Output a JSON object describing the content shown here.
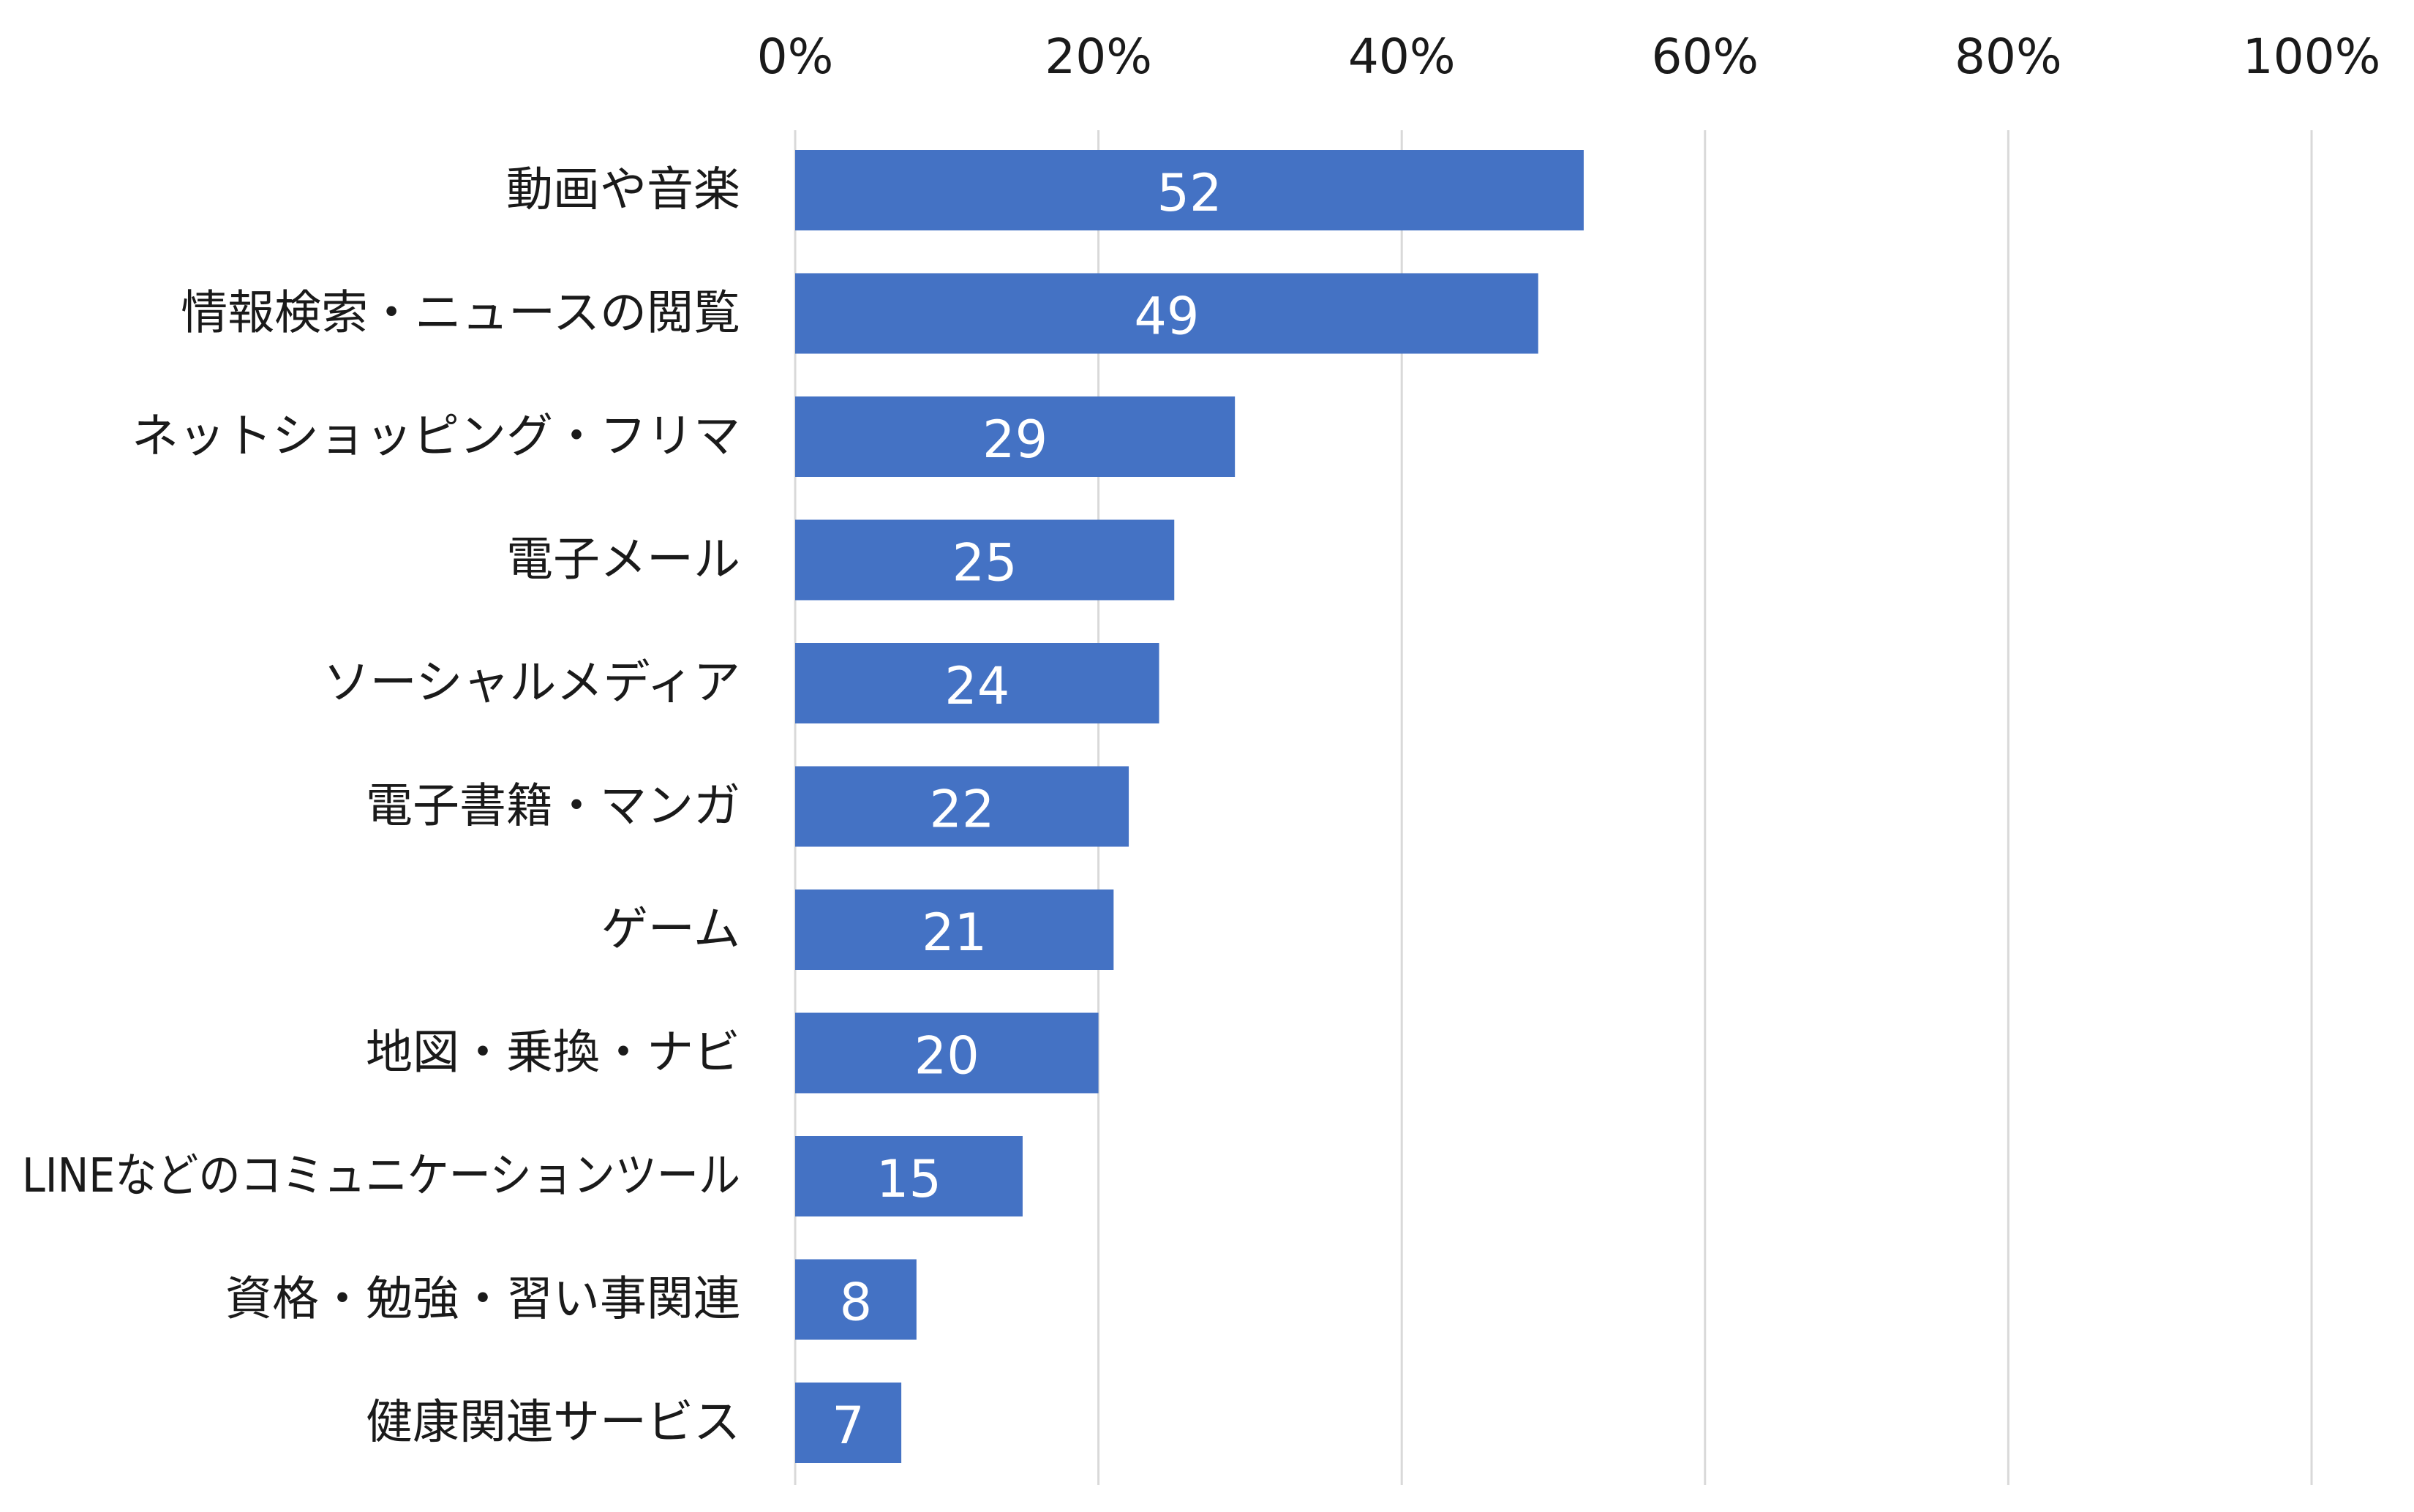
{
  "chart_data": {
    "type": "bar",
    "orientation": "horizontal",
    "categories": [
      "動画や音楽",
      "情報検索・ニュースの閲覧",
      "ネットショッピング・フリマ",
      "電子メール",
      "ソーシャルメディア",
      "電子書籍・マンガ",
      "ゲーム",
      "地図・乗換・ナビ",
      "LINEなどのコミュニケーションツール",
      "資格・勉強・習い事関連",
      "健康関連サービス"
    ],
    "values": [
      52,
      49,
      29,
      25,
      24,
      22,
      21,
      20,
      15,
      8,
      7
    ],
    "data_labels": [
      "52",
      "49",
      "29",
      "25",
      "24",
      "22",
      "21",
      "20",
      "15",
      "8",
      "7"
    ],
    "xlim": [
      0,
      100
    ],
    "x_ticks": [
      0,
      20,
      40,
      60,
      80,
      100
    ],
    "x_tick_labels": [
      "0%",
      "20%",
      "40%",
      "60%",
      "80%",
      "100%"
    ],
    "x_axis_position": "top",
    "grid": true,
    "legend": "none",
    "title": "",
    "xlabel": "",
    "ylabel": "",
    "colors": {
      "bar": "#4472C4",
      "grid": "#D9D9D9",
      "data_label": "#FFFFFF",
      "text": "#1A1A1A"
    }
  }
}
